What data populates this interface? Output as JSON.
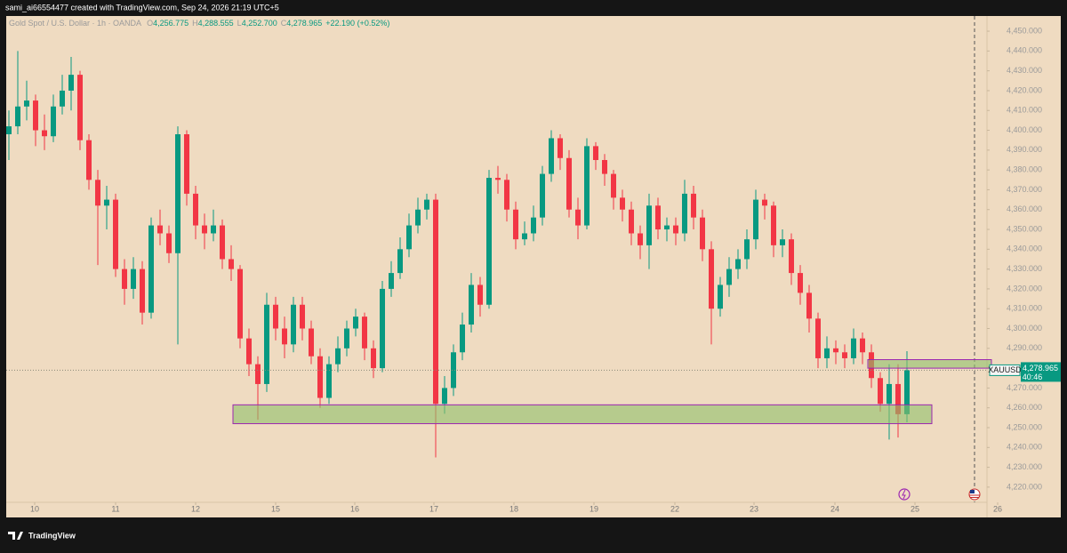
{
  "chart_data": {
    "type": "candlestick",
    "watermark": "sami_ai66554477 created with TradingView.com, Sep 24, 2026 21:19 UTC+5",
    "instrument": "Gold Spot / U.S. Dollar · 1h · OANDA",
    "legend_prefixes": [
      "O",
      "H",
      "L",
      "C"
    ],
    "legend_values": [
      "4,256.775",
      "4,288.555",
      "4,252.700",
      "4,278.965"
    ],
    "change": "+22.190 (+0.52%)",
    "symbol": "XAUUSD",
    "last_price_label": "4,278.965",
    "countdown": "40:46",
    "brand": "TradingView",
    "up_color": "#089981",
    "down_color": "#f23645",
    "open": [
      4398,
      4402,
      4412,
      4415,
      4400,
      4397,
      4412,
      4420,
      4428,
      4395,
      4375,
      4362,
      4365,
      4330,
      4320,
      4330,
      4308,
      4352,
      4348,
      4338,
      4398,
      4368,
      4352,
      4348,
      4352,
      4335,
      4330,
      4295,
      4282,
      4272,
      4312,
      4300,
      4292,
      4312,
      4300,
      4286,
      4265,
      4282,
      4290,
      4300,
      4306,
      4290,
      4280,
      4320,
      4328,
      4340,
      4352,
      4360,
      4365,
      4262,
      4270,
      4288,
      4302,
      4322,
      4312,
      4376,
      4375,
      4360,
      4345,
      4348,
      4356,
      4378,
      4396,
      4386,
      4360,
      4352,
      4392,
      4385,
      4378,
      4366,
      4360,
      4348,
      4342,
      4362,
      4350,
      4352,
      4348,
      4368,
      4356,
      4340,
      4310,
      4322,
      4330,
      4335,
      4345,
      4365,
      4362,
      4342,
      4345,
      4328,
      4318,
      4305,
      4285,
      4290,
      4288,
      4285,
      4295,
      4288,
      4275,
      4262,
      4272,
      4256.775
    ],
    "high": [
      4410,
      4440,
      4425,
      4418,
      4408,
      4418,
      4428,
      4437,
      4430,
      4398,
      4380,
      4372,
      4368,
      4335,
      4336,
      4334,
      4356,
      4360,
      4352,
      4402,
      4400,
      4372,
      4358,
      4360,
      4355,
      4342,
      4332,
      4300,
      4286,
      4318,
      4316,
      4306,
      4316,
      4316,
      4304,
      4290,
      4286,
      4296,
      4304,
      4310,
      4308,
      4294,
      4324,
      4334,
      4346,
      4358,
      4366,
      4368,
      4368,
      4276,
      4292,
      4308,
      4328,
      4326,
      4380,
      4382,
      4378,
      4364,
      4354,
      4362,
      4382,
      4400,
      4398,
      4390,
      4366,
      4396,
      4394,
      4388,
      4380,
      4370,
      4364,
      4352,
      4368,
      4366,
      4356,
      4356,
      4375,
      4372,
      4360,
      4344,
      4326,
      4336,
      4340,
      4350,
      4370,
      4368,
      4364,
      4350,
      4348,
      4332,
      4322,
      4308,
      4296,
      4294,
      4292,
      4300,
      4298,
      4292,
      4278,
      4282,
      4282,
      4288.555
    ],
    "low": [
      4385,
      4398,
      4405,
      4392,
      4390,
      4394,
      4408,
      4410,
      4390,
      4370,
      4332,
      4350,
      4326,
      4312,
      4315,
      4302,
      4305,
      4342,
      4333,
      4292,
      4362,
      4345,
      4340,
      4344,
      4330,
      4324,
      4290,
      4276,
      4254,
      4268,
      4294,
      4285,
      4288,
      4294,
      4282,
      4260,
      4262,
      4278,
      4286,
      4296,
      4284,
      4275,
      4278,
      4316,
      4325,
      4336,
      4348,
      4355,
      4235,
      4257,
      4266,
      4284,
      4298,
      4306,
      4310,
      4368,
      4354,
      4340,
      4342,
      4344,
      4352,
      4374,
      4380,
      4356,
      4345,
      4350,
      4380,
      4372,
      4360,
      4354,
      4342,
      4335,
      4330,
      4345,
      4344,
      4342,
      4344,
      4350,
      4334,
      4292,
      4306,
      4316,
      4325,
      4330,
      4340,
      4355,
      4336,
      4336,
      4322,
      4312,
      4298,
      4280,
      4280,
      4282,
      4280,
      4282,
      4282,
      4270,
      4258,
      4244,
      4245,
      4252.7
    ],
    "close": [
      4402,
      4412,
      4415,
      4400,
      4397,
      4412,
      4420,
      4428,
      4395,
      4375,
      4362,
      4365,
      4330,
      4320,
      4330,
      4308,
      4352,
      4348,
      4338,
      4398,
      4368,
      4352,
      4348,
      4352,
      4335,
      4330,
      4295,
      4282,
      4272,
      4312,
      4300,
      4292,
      4312,
      4300,
      4286,
      4265,
      4282,
      4290,
      4300,
      4306,
      4290,
      4280,
      4320,
      4328,
      4340,
      4352,
      4360,
      4365,
      4262,
      4270,
      4288,
      4302,
      4322,
      4312,
      4376,
      4375,
      4360,
      4345,
      4348,
      4356,
      4378,
      4396,
      4386,
      4360,
      4352,
      4392,
      4385,
      4378,
      4366,
      4360,
      4348,
      4342,
      4362,
      4350,
      4352,
      4348,
      4368,
      4356,
      4340,
      4310,
      4322,
      4330,
      4335,
      4345,
      4365,
      4362,
      4342,
      4345,
      4328,
      4318,
      4305,
      4285,
      4290,
      4288,
      4285,
      4295,
      4288,
      4275,
      4262,
      4272,
      4256.775,
      4278.965
    ],
    "zones": [
      {
        "x": [
          25.2,
          103.8
        ],
        "low": 4252,
        "high": 4261.5
      },
      {
        "x": [
          96.6,
          110.5
        ],
        "low": 4280,
        "high": 4284.3
      }
    ],
    "xlim": [
      -0.3,
      110
    ],
    "xticks": [
      {
        "value": 2.9,
        "label": "10"
      },
      {
        "value": 12,
        "label": "11"
      },
      {
        "value": 21,
        "label": "12"
      },
      {
        "value": 30,
        "label": "15"
      },
      {
        "value": 38.9,
        "label": "16"
      },
      {
        "value": 47.8,
        "label": "17"
      },
      {
        "value": 56.8,
        "label": "18"
      },
      {
        "value": 65.8,
        "label": "19"
      },
      {
        "value": 74.9,
        "label": "22"
      },
      {
        "value": 83.8,
        "label": "23"
      },
      {
        "value": 92.9,
        "label": "24"
      },
      {
        "value": 101.9,
        "label": "25"
      },
      {
        "value": 111.2,
        "label": "26"
      }
    ],
    "ylim": [
      4204.7,
      4457.65
    ],
    "yticks": [
      {
        "value": 4220,
        "label": "4,220.000"
      },
      {
        "value": 4230,
        "label": "4,230.000"
      },
      {
        "value": 4240,
        "label": "4,240.000"
      },
      {
        "value": 4250,
        "label": "4,250.000"
      },
      {
        "value": 4260,
        "label": "4,260.000"
      },
      {
        "value": 4270,
        "label": "4,270.000"
      },
      {
        "value": 4290,
        "label": "4,290.000"
      },
      {
        "value": 4300,
        "label": "4,300.000"
      },
      {
        "value": 4310,
        "label": "4,310.000"
      },
      {
        "value": 4320,
        "label": "4,320.000"
      },
      {
        "value": 4330,
        "label": "4,330.000"
      },
      {
        "value": 4340,
        "label": "4,340.000"
      },
      {
        "value": 4350,
        "label": "4,350.000"
      },
      {
        "value": 4360,
        "label": "4,360.000"
      },
      {
        "value": 4370,
        "label": "4,370.000"
      },
      {
        "value": 4380,
        "label": "4,380.000"
      },
      {
        "value": 4390,
        "label": "4,390.000"
      },
      {
        "value": 4400,
        "label": "4,400.000"
      },
      {
        "value": 4410,
        "label": "4,410.000"
      },
      {
        "value": 4420,
        "label": "4,420.000"
      },
      {
        "value": 4430,
        "label": "4,430.000"
      },
      {
        "value": 4440,
        "label": "4,440.000"
      },
      {
        "value": 4450,
        "label": "4,450.000"
      }
    ],
    "grid": false
  }
}
